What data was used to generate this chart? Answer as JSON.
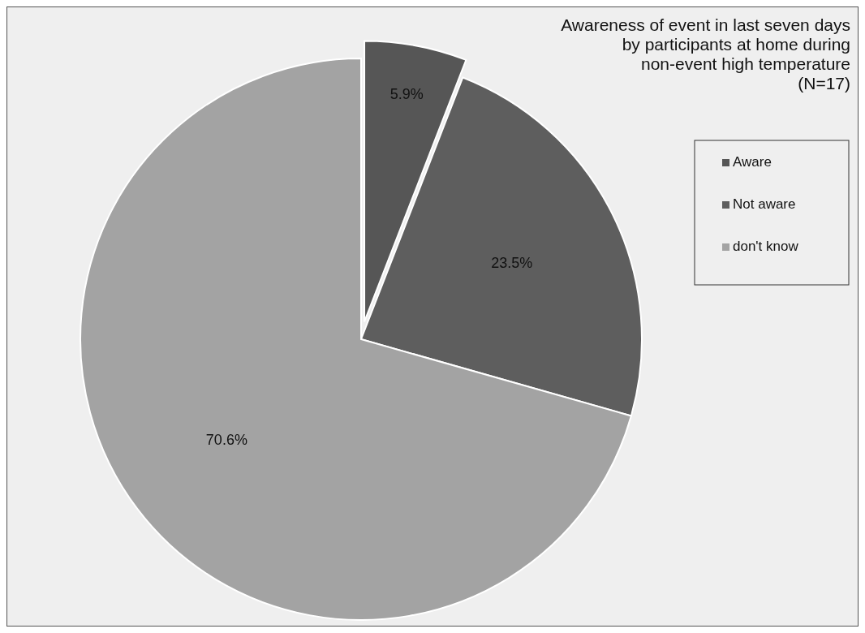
{
  "chart_data": {
    "type": "pie",
    "title": "Awareness of event in last seven days\nby participants at home during\nnon-event high temperature",
    "subtitle": "(N=17)",
    "categories": [
      "Aware",
      "Not aware",
      "don't know"
    ],
    "values": [
      5.9,
      23.5,
      70.6
    ],
    "colors": [
      "#565656",
      "#5e5e5e",
      "#a3a3a3"
    ],
    "value_labels": [
      "5.9%",
      "23.5%",
      "70.6%"
    ],
    "legend": "top right"
  }
}
